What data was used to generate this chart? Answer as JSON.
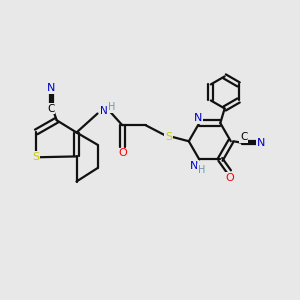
{
  "background_color": "#e8e8e8",
  "atom_colors": {
    "N": "#0000cc",
    "S": "#cccc00",
    "O": "#ff0000",
    "C": "#000000",
    "H": "#6699aa",
    "bond": "#111111"
  },
  "bond_lw": 1.6,
  "figsize": [
    3.0,
    3.0
  ],
  "dpi": 100
}
